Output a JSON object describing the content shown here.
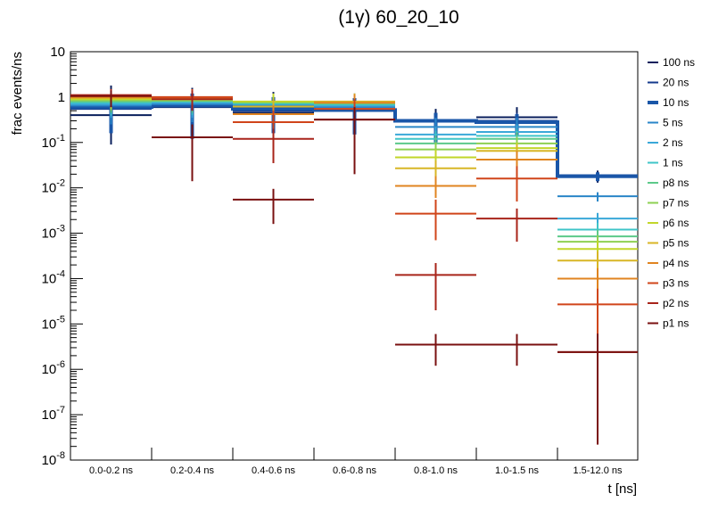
{
  "chart_data": {
    "type": "step-histogram",
    "title": "(1γ) 60_20_10",
    "xlabel": "t [ns]",
    "ylabel": "frac events/ns",
    "yscale": "log",
    "ylim": [
      1e-08,
      10
    ],
    "yticks": [
      {
        "base": "10",
        "exp": "-8",
        "value": 1e-08
      },
      {
        "base": "10",
        "exp": "-7",
        "value": 1e-07
      },
      {
        "base": "10",
        "exp": "-6",
        "value": 1e-06
      },
      {
        "base": "10",
        "exp": "-5",
        "value": 1e-05
      },
      {
        "base": "10",
        "exp": "-4",
        "value": 0.0001
      },
      {
        "base": "10",
        "exp": "-3",
        "value": 0.001
      },
      {
        "base": "10",
        "exp": "-2",
        "value": 0.01
      },
      {
        "base": "10",
        "exp": "-1",
        "value": 0.1
      },
      {
        "base": "1",
        "exp": "",
        "value": 1
      },
      {
        "base": "10",
        "exp": "",
        "value": 10
      }
    ],
    "categories": [
      "0.0-0.2 ns",
      "0.2-0.4 ns",
      "0.4-0.6 ns",
      "0.6-0.8 ns",
      "0.8-1.0 ns",
      "1.0-1.5 ns",
      "1.5-12.0 ns"
    ],
    "series": [
      {
        "name": "100 ns",
        "color": "#0a1f5c",
        "values": [
          0.4,
          0.6,
          0.45,
          0.5,
          0.3,
          0.36,
          0.019
        ],
        "err_hi": [
          1.8,
          1.6,
          1.3,
          1.2,
          0.55,
          0.6,
          0.024
        ],
        "err_lo": [
          0.09,
          0.15,
          0.15,
          0.15,
          0.09,
          0.14,
          0.013
        ]
      },
      {
        "name": "20 ns",
        "color": "#153a8c",
        "values": [
          0.55,
          0.65,
          0.5,
          0.52,
          0.3,
          0.3,
          0.018
        ],
        "err_hi": [
          1.3,
          1.3,
          1.0,
          1.0,
          0.45,
          0.45,
          0.022
        ],
        "err_lo": [
          0.18,
          0.2,
          0.18,
          0.18,
          0.12,
          0.15,
          0.014
        ]
      },
      {
        "name": "10 ns",
        "color": "#1a56a8",
        "values": [
          0.6,
          0.65,
          0.55,
          0.52,
          0.3,
          0.28,
          0.018
        ],
        "err_hi": [
          1.1,
          1.2,
          1.0,
          0.95,
          0.45,
          0.42,
          0.022
        ],
        "err_lo": [
          0.16,
          0.12,
          0.16,
          0.15,
          0.1,
          0.14,
          0.014
        ],
        "thick": true
      },
      {
        "name": "5 ns",
        "color": "#2a86c8",
        "values": [
          0.65,
          0.7,
          0.65,
          0.6,
          0.22,
          0.22,
          0.0065
        ],
        "err_hi": [
          1.1,
          1.15,
          1.05,
          1.0,
          0.35,
          0.35,
          0.008
        ],
        "err_lo": [
          0.25,
          0.28,
          0.25,
          0.22,
          0.14,
          0.13,
          0.005
        ]
      },
      {
        "name": "2 ns",
        "color": "#3aa8d8",
        "values": [
          0.7,
          0.75,
          0.7,
          0.65,
          0.15,
          0.17,
          0.0021
        ],
        "err_hi": [
          1.1,
          1.15,
          1.1,
          1.0,
          0.22,
          0.25,
          0.0028
        ],
        "err_lo": [
          0.35,
          0.35,
          0.3,
          0.3,
          0.09,
          0.1,
          0.0015
        ]
      },
      {
        "name": "1 ns",
        "color": "#3fc4c8",
        "values": [
          0.75,
          0.8,
          0.72,
          0.68,
          0.12,
          0.14,
          0.0012
        ],
        "err_hi": [
          1.1,
          1.15,
          1.1,
          1.0,
          0.18,
          0.2,
          0.0017
        ],
        "err_lo": [
          0.4,
          0.4,
          0.35,
          0.35,
          0.07,
          0.08,
          0.0008
        ]
      },
      {
        "name": "p8 ns",
        "color": "#5cc98a",
        "values": [
          0.8,
          0.82,
          0.75,
          0.72,
          0.095,
          0.12,
          0.00085
        ],
        "err_hi": [
          1.15,
          1.2,
          1.1,
          1.05,
          0.14,
          0.17,
          0.0012
        ],
        "err_lo": [
          0.45,
          0.45,
          0.4,
          0.4,
          0.055,
          0.07,
          0.00055
        ]
      },
      {
        "name": "p7 ns",
        "color": "#8ed052",
        "values": [
          0.85,
          0.85,
          0.78,
          0.75,
          0.07,
          0.095,
          0.00065
        ],
        "err_hi": [
          1.2,
          1.2,
          1.15,
          1.1,
          0.1,
          0.13,
          0.0009
        ],
        "err_lo": [
          0.5,
          0.5,
          0.45,
          0.45,
          0.04,
          0.055,
          0.0004
        ]
      },
      {
        "name": "p6 ns",
        "color": "#c2d62a",
        "values": [
          0.9,
          0.9,
          0.8,
          0.78,
          0.047,
          0.075,
          0.00045
        ],
        "err_hi": [
          1.25,
          1.25,
          1.2,
          1.15,
          0.07,
          0.1,
          0.0007
        ],
        "err_lo": [
          0.55,
          0.55,
          0.5,
          0.5,
          0.03,
          0.045,
          0.00025
        ]
      },
      {
        "name": "p5 ns",
        "color": "#d8b626",
        "values": [
          0.95,
          0.92,
          0.62,
          0.8,
          0.027,
          0.065,
          0.00025
        ],
        "err_hi": [
          1.3,
          1.3,
          0.9,
          1.2,
          0.04,
          0.09,
          0.0004
        ],
        "err_lo": [
          0.6,
          0.6,
          0.4,
          0.5,
          0.016,
          0.04,
          0.00012
        ]
      },
      {
        "name": "p4 ns",
        "color": "#e08420",
        "values": [
          1.0,
          0.95,
          0.42,
          0.75,
          0.011,
          0.042,
          0.0001
        ],
        "err_hi": [
          1.35,
          1.4,
          0.65,
          1.15,
          0.018,
          0.065,
          0.00017
        ],
        "err_lo": [
          0.65,
          0.6,
          0.25,
          0.45,
          0.006,
          0.025,
          4e-05
        ]
      },
      {
        "name": "p3 ns",
        "color": "#d0451a",
        "values": [
          1.1,
          1.0,
          0.28,
          0.55,
          0.0027,
          0.016,
          2.7e-05
        ],
        "err_hi": [
          1.5,
          1.5,
          0.5,
          0.9,
          0.0055,
          0.03,
          6e-05
        ],
        "err_lo": [
          0.7,
          0.6,
          0.15,
          0.3,
          0.0007,
          0.005,
          5e-06
        ]
      },
      {
        "name": "p2 ns",
        "color": "#a8241a",
        "values": [
          1.1,
          0.9,
          0.12,
          0.32,
          0.00012,
          0.0021,
          2.4e-06
        ],
        "err_hi": [
          1.5,
          1.4,
          0.2,
          0.6,
          0.00022,
          0.0035,
          6.1e-06
        ],
        "err_lo": [
          0.65,
          0.5,
          0.035,
          0.1,
          2e-05,
          0.00065,
          2.2e-08
        ]
      },
      {
        "name": "p1 ns",
        "color": "#7a1010",
        "values": [
          1.05,
          0.13,
          0.0055,
          0.32,
          3.5e-06,
          3.5e-06,
          2.4e-06
        ],
        "err_hi": [
          1.4,
          0.25,
          0.0095,
          0.6,
          6e-06,
          6e-06,
          6.1e-06
        ],
        "err_lo": [
          0.6,
          0.014,
          0.0016,
          0.02,
          1.2e-06,
          1.2e-06,
          2.2e-08
        ]
      }
    ],
    "legend_position": "right"
  }
}
